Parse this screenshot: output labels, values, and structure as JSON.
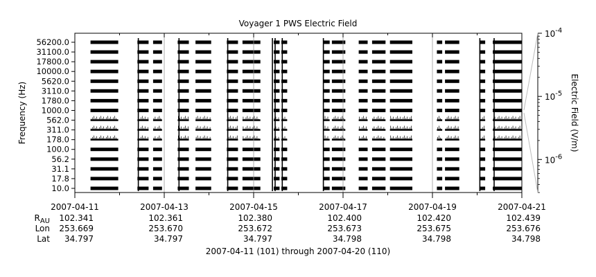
{
  "chart_data": {
    "type": "heatmap",
    "title": "Voyager 1 PWS Electric Field",
    "ylabel": "Frequency (Hz)",
    "colorbar_label": "Electric Field (V/m)",
    "colorbar_range": [
      3e-07,
      0.0001
    ],
    "colorbar_ticks": [
      {
        "base": "10",
        "exp": "-4",
        "value": 0.0001
      },
      {
        "base": "10",
        "exp": "-5",
        "value": 1e-05
      },
      {
        "base": "10",
        "exp": "-6",
        "value": 1e-06
      }
    ],
    "y_channels": [
      "10.0",
      "17.8",
      "31.1",
      "56.2",
      "100.0",
      "178.0",
      "311.0",
      "562.0",
      "1000.0",
      "1780.0",
      "3110.0",
      "5620.0",
      "10000.0",
      "17800.0",
      "31100.0",
      "56200.0"
    ],
    "x_range_days": [
      0,
      10
    ],
    "x_ticks": [
      "2007-04-11",
      "2007-04-13",
      "2007-04-15",
      "2007-04-17",
      "2007-04-19",
      "2007-04-21"
    ],
    "ephemeris": {
      "labels": [
        {
          "main": "R",
          "sub": "AU"
        },
        {
          "main": "Lon",
          "sub": ""
        },
        {
          "main": "Lat",
          "sub": ""
        }
      ],
      "R_AU": [
        "102.341",
        "102.361",
        "102.380",
        "102.400",
        "102.420",
        "102.439"
      ],
      "Lon": [
        "253.669",
        "253.670",
        "253.672",
        "253.673",
        "253.675",
        "253.676"
      ],
      "Lat": [
        "34.797",
        "34.797",
        "34.797",
        "34.798",
        "34.798",
        "34.798"
      ]
    },
    "xlabel": "2007-04-11 (101) through 2007-04-20 (110)",
    "data_intervals_days": [
      [
        0.35,
        0.97
      ],
      [
        1.4,
        1.65
      ],
      [
        1.75,
        1.95
      ],
      [
        2.3,
        2.55
      ],
      [
        2.7,
        3.05
      ],
      [
        3.4,
        3.65
      ],
      [
        3.75,
        4.15
      ],
      [
        4.45,
        4.58
      ],
      [
        4.62,
        4.75
      ],
      [
        5.55,
        5.7
      ],
      [
        5.75,
        6.05
      ],
      [
        6.35,
        6.55
      ],
      [
        6.65,
        6.95
      ],
      [
        7.05,
        7.55
      ],
      [
        8.1,
        8.22
      ],
      [
        8.28,
        8.6
      ],
      [
        9.05,
        9.18
      ],
      [
        9.35,
        10.0
      ]
    ],
    "spikes_days": [
      1.42,
      2.33,
      3.42,
      4.42,
      4.48,
      4.64,
      5.56,
      9.06,
      9.38
    ]
  }
}
